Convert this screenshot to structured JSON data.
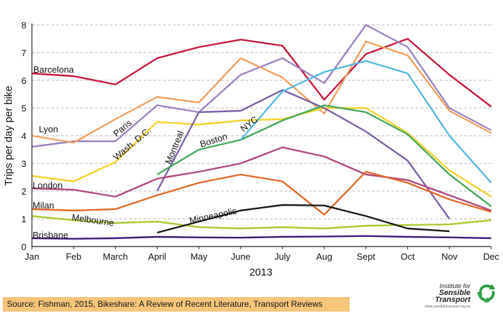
{
  "chart_data": {
    "type": "line",
    "title": "",
    "xlabel": "2013",
    "ylabel": "Trips per day per bike",
    "categories": [
      "Jan",
      "Feb",
      "March",
      "April",
      "May",
      "June",
      "July",
      "Aug",
      "Sept",
      "Oct",
      "Nov",
      "Dec"
    ],
    "ylim": [
      0,
      8
    ],
    "yticks": [
      0,
      1,
      2,
      3,
      4,
      5,
      6,
      7,
      8
    ],
    "grid": "horizontal dashed",
    "legend": "inline labels",
    "series": [
      {
        "name": "Barcelona",
        "color": "#c8173c",
        "values": [
          6.25,
          6.15,
          5.85,
          6.8,
          7.2,
          7.47,
          7.25,
          5.3,
          6.95,
          7.5,
          6.2,
          5.05
        ]
      },
      {
        "name": "Paris",
        "color": "#9b82c0",
        "values": [
          3.6,
          3.8,
          3.8,
          5.1,
          4.85,
          6.2,
          6.8,
          5.9,
          8.0,
          7.2,
          5.0,
          4.2
        ]
      },
      {
        "name": "Lyon",
        "color": "#f0a060",
        "values": [
          4.0,
          3.75,
          4.6,
          5.4,
          5.2,
          6.8,
          6.1,
          4.8,
          7.4,
          6.9,
          4.9,
          4.1
        ]
      },
      {
        "name": "Wash. D.C.",
        "color": "#f2d22e",
        "values": [
          2.55,
          2.35,
          3.05,
          4.5,
          4.4,
          4.55,
          4.6,
          5.0,
          5.0,
          4.1,
          2.75,
          1.8
        ]
      },
      {
        "name": "Montreal",
        "color": "#7c62a8",
        "values": [
          null,
          null,
          null,
          2.0,
          4.85,
          4.9,
          5.65,
          5.0,
          4.15,
          3.1,
          1.0,
          null
        ]
      },
      {
        "name": "Boston",
        "color": "#45a85a",
        "values": [
          null,
          null,
          null,
          2.6,
          3.5,
          3.85,
          4.55,
          5.1,
          4.85,
          4.05,
          2.6,
          1.45
        ]
      },
      {
        "name": "NYC",
        "color": "#55b8e0",
        "values": [
          null,
          null,
          null,
          null,
          null,
          3.85,
          5.6,
          6.3,
          6.7,
          6.25,
          4.0,
          2.3
        ]
      },
      {
        "name": "London",
        "color": "#b0487c",
        "values": [
          2.1,
          2.05,
          1.8,
          2.45,
          2.7,
          3.0,
          3.58,
          3.25,
          2.6,
          2.4,
          1.85,
          1.3
        ]
      },
      {
        "name": "Milan",
        "color": "#e06a28",
        "values": [
          1.35,
          1.3,
          1.35,
          1.85,
          2.3,
          2.6,
          2.35,
          1.15,
          2.7,
          2.3,
          1.7,
          1.25
        ]
      },
      {
        "name": "Melbourne",
        "color": "#a8cc30",
        "values": [
          1.1,
          0.95,
          0.85,
          0.9,
          0.7,
          0.65,
          0.7,
          0.65,
          0.75,
          0.78,
          0.8,
          0.95
        ]
      },
      {
        "name": "Minneapolis",
        "color": "#1a1a1a",
        "values": [
          null,
          null,
          null,
          0.5,
          0.9,
          1.3,
          1.5,
          1.48,
          1.1,
          0.65,
          0.55,
          null
        ]
      },
      {
        "name": "Brisbane",
        "color": "#3d1a78",
        "values": [
          0.3,
          0.28,
          0.3,
          0.35,
          0.33,
          0.32,
          0.35,
          0.36,
          0.38,
          0.35,
          0.33,
          0.3
        ]
      }
    ],
    "annotations": [
      {
        "text": "Barcelona",
        "series": "Barcelona"
      },
      {
        "text": "Paris",
        "series": "Paris"
      },
      {
        "text": "Lyon",
        "series": "Lyon"
      },
      {
        "text": "Wash. D.C.",
        "series": "Wash. D.C."
      },
      {
        "text": "Montreal",
        "series": "Montreal"
      },
      {
        "text": "Boston",
        "series": "Boston"
      },
      {
        "text": "NYC",
        "series": "NYC"
      },
      {
        "text": "London",
        "series": "London"
      },
      {
        "text": "Milan",
        "series": "Milan"
      },
      {
        "text": "Melbourne",
        "series": "Melbourne"
      },
      {
        "text": "Minneapolis",
        "series": "Minneapolis"
      },
      {
        "text": "Brisbane",
        "series": "Brisbane"
      }
    ]
  },
  "footer": {
    "source": "Source: Fishman, 2015, Bikeshare: A Review of Recent Literature, Transport Reviews",
    "logo_line1": "Institute for",
    "logo_line2": "Sensible Transport",
    "logo_url": "www.sensibletransport.org.au",
    "logo_color": "#2e9e45"
  }
}
